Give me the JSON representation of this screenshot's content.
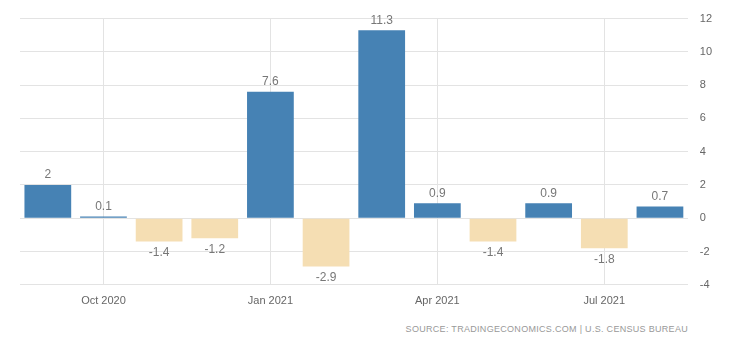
{
  "chart_data": {
    "type": "bar",
    "source": "SOURCE: TRADINGECONOMICS.COM | U.S. CENSUS BUREAU",
    "categories": [
      null,
      "Oct 2020",
      null,
      null,
      "Jan 2021",
      null,
      null,
      "Apr 2021",
      null,
      null,
      "Jul 2021",
      null
    ],
    "values": [
      2,
      0.1,
      -1.4,
      -1.2,
      7.6,
      -2.9,
      11.3,
      0.9,
      -1.4,
      0.9,
      -1.8,
      0.7
    ],
    "colors": [
      "#4682b4",
      "#4682b4",
      "#f5deb3",
      "#f5deb3",
      "#4682b4",
      "#f5deb3",
      "#4682b4",
      "#4682b4",
      "#f5deb3",
      "#4682b4",
      "#f5deb3",
      "#4682b4"
    ],
    "ylim": [
      -4,
      12
    ],
    "yticks": [
      -4,
      -2,
      0,
      2,
      4,
      6,
      8,
      10,
      12
    ],
    "grid": true,
    "data_labels": true
  }
}
